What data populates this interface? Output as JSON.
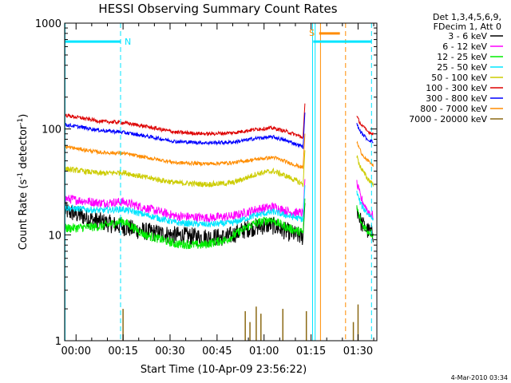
{
  "chart_data": {
    "type": "line",
    "title": "HESSI Observing Summary Count Rates",
    "xlabel": "Start Time (10-Apr-09 23:56:22)",
    "ylabel_main": "Count Rate (s",
    "ylabel_sup1": "-1",
    "ylabel_mid": " detector",
    "ylabel_sup2": "-1",
    "ylabel_end": ")",
    "y_scale": "log",
    "ylim": [
      1,
      1000
    ],
    "xlim_minutes": [
      -3.63,
      96
    ],
    "x_ticks": [
      {
        "label": "00:00",
        "minute": 0
      },
      {
        "label": "00:15",
        "minute": 15
      },
      {
        "label": "00:30",
        "minute": 30
      },
      {
        "label": "00:45",
        "minute": 45
      },
      {
        "label": "01:00",
        "minute": 60
      },
      {
        "label": "01:15",
        "minute": 75
      },
      {
        "label": "01:30",
        "minute": 90
      }
    ],
    "y_ticks": [
      {
        "label": "1",
        "value": 1
      },
      {
        "label": "10",
        "value": 10
      },
      {
        "label": "100",
        "value": 100
      },
      {
        "label": "1000",
        "value": 1000
      }
    ],
    "legend_header": [
      "Det 1,3,4,5,6,9,",
      "FDecim 1, Att 0"
    ],
    "legend_position": "right",
    "timestamp": "4-Mar-2010 03:34",
    "segments": [
      {
        "start": -3.5,
        "end": 72.5
      },
      {
        "start": 89.6,
        "end": 95
      }
    ],
    "night_marker": {
      "label": "N",
      "minute": 14.2,
      "color": "#00e5ff"
    },
    "saa_marker": {
      "label": "S",
      "minute": 76.4,
      "color": "#ff8c00"
    },
    "cyan_bars": [
      {
        "start": -3.5,
        "end": 14.2,
        "value": 670,
        "color": "#00e5ff"
      },
      {
        "start": 75.7,
        "end": 94.3,
        "value": 670,
        "color": "#00e5ff"
      }
    ],
    "orange_bar": {
      "start": 77.6,
      "end": 84.2,
      "value": 800,
      "color": "#ff8c00"
    },
    "vertical_lines": [
      {
        "minute": -3.5,
        "color": "#00e5ff",
        "style": "solid"
      },
      {
        "minute": 14.2,
        "color": "#00e5ff",
        "style": "dashed"
      },
      {
        "minute": 75.5,
        "color": "#00e5ff",
        "style": "solid"
      },
      {
        "minute": 76.3,
        "color": "#00e5ff",
        "style": "solid"
      },
      {
        "minute": 78.0,
        "color": "#ff8c00",
        "style": "solid"
      },
      {
        "minute": 86.0,
        "color": "#ff8c00",
        "style": "dashed"
      },
      {
        "minute": 94.3,
        "color": "#00e5ff",
        "style": "dashed"
      }
    ],
    "series": [
      {
        "name": "3 - 6 keV",
        "color": "#000000",
        "noise": 0.2,
        "anchors": [
          [
            -3.5,
            17
          ],
          [
            5,
            14
          ],
          [
            12,
            12.5
          ],
          [
            20,
            11
          ],
          [
            30,
            10
          ],
          [
            40,
            9.5
          ],
          [
            48,
            9.5
          ],
          [
            55,
            11.5
          ],
          [
            62,
            12.5
          ],
          [
            68,
            10.5
          ],
          [
            72.5,
            9.5
          ]
        ],
        "tail": [
          [
            89.6,
            18
          ],
          [
            91,
            13
          ],
          [
            93,
            11
          ],
          [
            95,
            10
          ]
        ]
      },
      {
        "name": "6 - 12 keV",
        "color": "#ff00ff",
        "noise": 0.1,
        "anchors": [
          [
            -3.5,
            22
          ],
          [
            8,
            20
          ],
          [
            15,
            20.5
          ],
          [
            22,
            18
          ],
          [
            32,
            15
          ],
          [
            42,
            14.5
          ],
          [
            50,
            15
          ],
          [
            58,
            17.5
          ],
          [
            63,
            18.5
          ],
          [
            68,
            16.5
          ],
          [
            72.5,
            16
          ]
        ],
        "tail": [
          [
            89.6,
            30
          ],
          [
            91,
            22
          ],
          [
            93,
            17
          ],
          [
            95,
            15
          ]
        ]
      },
      {
        "name": "12 - 25 keV",
        "color": "#00ee00",
        "noise": 0.1,
        "anchors": [
          [
            -3.5,
            11.5
          ],
          [
            8,
            12
          ],
          [
            15,
            13.5
          ],
          [
            22,
            10
          ],
          [
            32,
            8.2
          ],
          [
            40,
            8
          ],
          [
            48,
            9
          ],
          [
            56,
            12.5
          ],
          [
            62,
            14
          ],
          [
            68,
            11.5
          ],
          [
            72.5,
            10.5
          ]
        ],
        "tail": [
          [
            89.6,
            18
          ],
          [
            91,
            13
          ],
          [
            93,
            11
          ],
          [
            95,
            10
          ]
        ]
      },
      {
        "name": "25 - 50 keV",
        "color": "#00e5ff",
        "noise": 0.07,
        "anchors": [
          [
            -3.5,
            18
          ],
          [
            8,
            17
          ],
          [
            15,
            17.5
          ],
          [
            22,
            15.5
          ],
          [
            32,
            13
          ],
          [
            42,
            12.5
          ],
          [
            50,
            13
          ],
          [
            58,
            15.5
          ],
          [
            63,
            16.5
          ],
          [
            68,
            15
          ],
          [
            72.5,
            14
          ]
        ],
        "tail": [
          [
            89.6,
            25
          ],
          [
            91,
            19
          ],
          [
            93,
            16
          ],
          [
            95,
            14
          ]
        ]
      },
      {
        "name": "50 - 100 keV",
        "color": "#cccc00",
        "noise": 0.06,
        "anchors": [
          [
            -3.5,
            42
          ],
          [
            8,
            38
          ],
          [
            15,
            39
          ],
          [
            22,
            35
          ],
          [
            32,
            31
          ],
          [
            42,
            30
          ],
          [
            50,
            31
          ],
          [
            58,
            38
          ],
          [
            63,
            40
          ],
          [
            68,
            35
          ],
          [
            72.5,
            30
          ]
        ],
        "tail": [
          [
            89.6,
            55
          ],
          [
            91,
            42
          ],
          [
            93,
            34
          ],
          [
            95,
            30
          ]
        ]
      },
      {
        "name": "100 - 300 keV",
        "color": "#dd0000",
        "noise": 0.04,
        "anchors": [
          [
            -3.5,
            135
          ],
          [
            8,
            118
          ],
          [
            15,
            115
          ],
          [
            22,
            106
          ],
          [
            32,
            93
          ],
          [
            42,
            90
          ],
          [
            50,
            92
          ],
          [
            58,
            100
          ],
          [
            63,
            102
          ],
          [
            68,
            93
          ],
          [
            72.5,
            83
          ]
        ],
        "tail": [
          [
            89.6,
            130
          ],
          [
            91,
            110
          ],
          [
            93,
            95
          ],
          [
            95,
            90
          ]
        ]
      },
      {
        "name": "300 - 800 keV",
        "color": "#0000ff",
        "noise": 0.04,
        "anchors": [
          [
            -3.5,
            110
          ],
          [
            8,
            97
          ],
          [
            15,
            93
          ],
          [
            22,
            86
          ],
          [
            32,
            76
          ],
          [
            42,
            74
          ],
          [
            50,
            75
          ],
          [
            58,
            82
          ],
          [
            63,
            84
          ],
          [
            68,
            76
          ],
          [
            72.5,
            68
          ]
        ],
        "tail": [
          [
            89.6,
            110
          ],
          [
            91,
            92
          ],
          [
            93,
            80
          ],
          [
            95,
            75
          ]
        ]
      },
      {
        "name": "800 - 7000 keV",
        "color": "#ff8c00",
        "noise": 0.04,
        "anchors": [
          [
            -3.5,
            68
          ],
          [
            8,
            60
          ],
          [
            15,
            59
          ],
          [
            22,
            54
          ],
          [
            32,
            48
          ],
          [
            42,
            47
          ],
          [
            50,
            48
          ],
          [
            58,
            52
          ],
          [
            63,
            54
          ],
          [
            68,
            48
          ],
          [
            72.5,
            43
          ]
        ],
        "tail": [
          [
            89.6,
            75
          ],
          [
            91,
            60
          ],
          [
            93,
            50
          ],
          [
            95,
            45
          ]
        ]
      },
      {
        "name": "7000 - 20000 keV",
        "color": "#8b6914",
        "noise": 0,
        "anchors": [],
        "tail": [],
        "spikes": [
          [
            15,
            2
          ],
          [
            54,
            1.9
          ],
          [
            55.5,
            1.5
          ],
          [
            57.5,
            2.1
          ],
          [
            59,
            1.8
          ],
          [
            66,
            2.0
          ],
          [
            73.5,
            1.9
          ],
          [
            88.5,
            1.5
          ],
          [
            90,
            2.2
          ]
        ]
      }
    ]
  }
}
